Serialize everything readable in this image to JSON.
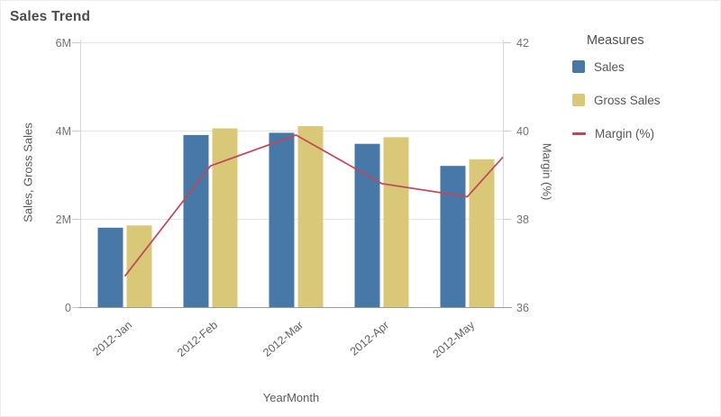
{
  "panel": {
    "title": "Sales Trend"
  },
  "axes": {
    "left": {
      "title": "Sales, Gross Sales",
      "ticks": [
        "0",
        "2M",
        "4M",
        "6M"
      ]
    },
    "right": {
      "title": "Margin (%)",
      "ticks": [
        "36",
        "38",
        "40",
        "42"
      ]
    },
    "x": {
      "title": "YearMonth"
    }
  },
  "legend": {
    "title": "Measures",
    "items": [
      {
        "label": "Sales",
        "color": "#4878a8",
        "swatch": "square"
      },
      {
        "label": "Gross Sales",
        "color": "#d8c878",
        "swatch": "square"
      },
      {
        "label": "Margin (%)",
        "color": "#c0465a",
        "swatch": "line"
      }
    ]
  },
  "chart_data": {
    "type": "combo",
    "title": "Sales Trend",
    "categories": [
      "2012-Jan",
      "2012-Feb",
      "2012-Mar",
      "2012-Apr",
      "2012-May"
    ],
    "series": [
      {
        "name": "Sales",
        "type": "bar",
        "axis": "left",
        "color": "#4878a8",
        "values": [
          1800000,
          3900000,
          3950000,
          3700000,
          3200000
        ]
      },
      {
        "name": "Gross Sales",
        "type": "bar",
        "axis": "left",
        "color": "#d8c878",
        "values": [
          1850000,
          4050000,
          4100000,
          3850000,
          3350000
        ]
      },
      {
        "name": "Margin (%)",
        "type": "line",
        "axis": "right",
        "color": "#c0465a",
        "values": [
          36.7,
          39.2,
          39.9,
          38.8,
          38.5
        ],
        "line_extends_to_right_edge_at": 39.4
      }
    ],
    "xlabel": "YearMonth",
    "ylabel_left": "Sales, Gross Sales",
    "ylabel_right": "Margin (%)",
    "left_axis_range": [
      0,
      6000000
    ],
    "right_axis_range": [
      36,
      42
    ],
    "left_ticks": [
      "0",
      "2M",
      "4M",
      "6M"
    ],
    "right_ticks": [
      "36",
      "38",
      "40",
      "42"
    ],
    "grid": "horizontal",
    "legend_position": "right",
    "legend_title": "Measures"
  },
  "colors": {
    "grid": "#e6e6e6",
    "axis_line": "#d9d9d9",
    "baseline": "#9a9a9a",
    "tick_mark": "#c9c9c9"
  }
}
